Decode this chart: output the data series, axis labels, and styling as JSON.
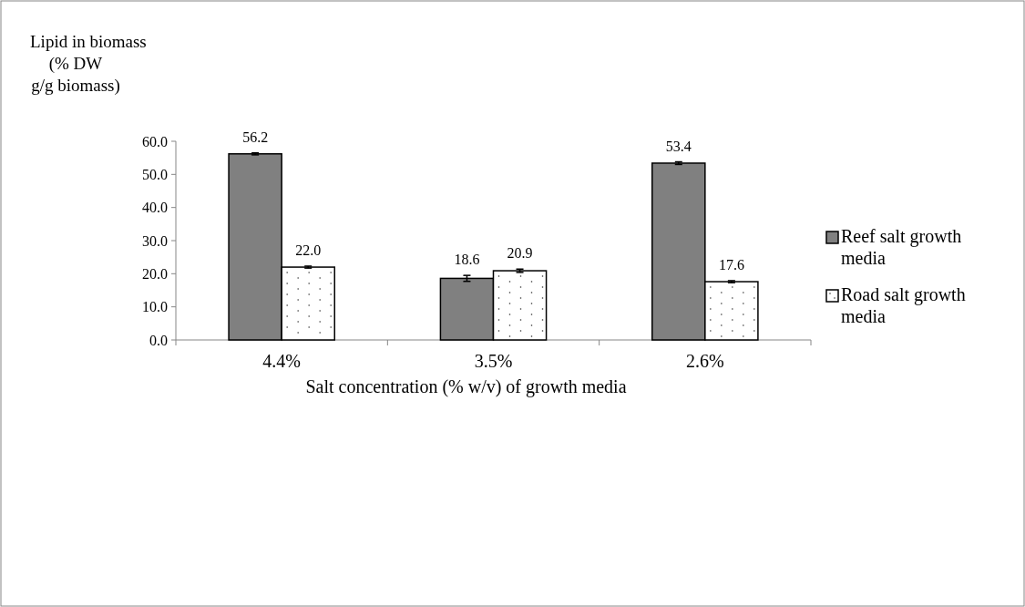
{
  "chart_data": {
    "type": "bar",
    "xlabel": "Salt concentration (% w/v) of growth media",
    "ylabel": "Lipid in biomass\n(% DW\ng/g biomass)",
    "categories": [
      "4.4%",
      "3.5%",
      "2.6%"
    ],
    "series": [
      {
        "name": "Reef salt growth media",
        "color": "#808080",
        "values": [
          56.2,
          18.6,
          53.4
        ],
        "value_labels": [
          "56.2",
          "18.6",
          "53.4"
        ],
        "errors": [
          0.3,
          0.9,
          0.4
        ]
      },
      {
        "name": "Road salt growth media",
        "color": "#ffffff",
        "values": [
          22.0,
          20.9,
          17.6
        ],
        "value_labels": [
          "22.0",
          "20.9",
          "17.6"
        ],
        "errors": [
          0.3,
          0.5,
          0.3
        ]
      }
    ],
    "ylim": [
      0,
      60
    ],
    "yticks": [
      {
        "value": 0,
        "label": "0.0"
      },
      {
        "value": 10,
        "label": "10.0"
      },
      {
        "value": 20,
        "label": "20.0"
      },
      {
        "value": 30,
        "label": "30.0"
      },
      {
        "value": 40,
        "label": "40.0"
      },
      {
        "value": 50,
        "label": "50.0"
      },
      {
        "value": 60,
        "label": "60.0"
      }
    ],
    "legend": "right",
    "grid": false
  }
}
